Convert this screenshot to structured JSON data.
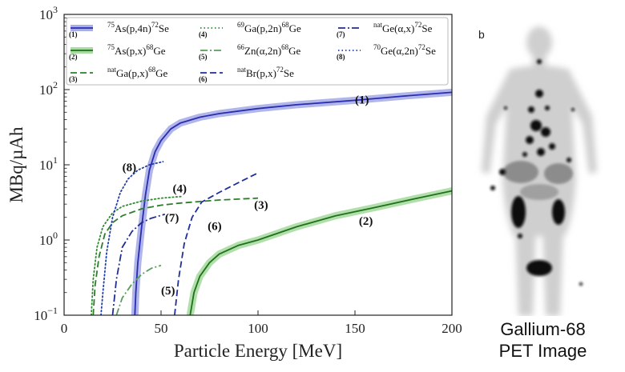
{
  "chart_data": {
    "type": "line",
    "xlabel": "Particle Energy [MeV]",
    "ylabel": "MBq/µAh",
    "xlim": [
      0,
      200
    ],
    "ylim": [
      0.1,
      1000
    ],
    "yscale": "log",
    "grid": false,
    "legend_position": "top",
    "x_ticks": [
      "0",
      "50",
      "100",
      "150",
      "200"
    ],
    "y_ticks": [
      {
        "base": "10",
        "exp": "−1",
        "value": 0.1
      },
      {
        "base": "10",
        "exp": "0",
        "value": 1
      },
      {
        "base": "10",
        "exp": "1",
        "value": 10
      },
      {
        "base": "10",
        "exp": "2",
        "value": 100
      },
      {
        "base": "10",
        "exp": "3",
        "value": 1000
      }
    ],
    "series": [
      {
        "id": "1",
        "number": "(1)",
        "sup1": "75",
        "base1": "As(p,4n)",
        "sup2": "72",
        "base2": "Se",
        "label": "(1)",
        "label_at": [
          150,
          65
        ],
        "color": "#2b2bb0",
        "style": "solid",
        "band": true,
        "band_color": "#a8aee8",
        "points": [
          [
            36.5,
            0.1
          ],
          [
            37,
            0.2
          ],
          [
            38,
            0.5
          ],
          [
            40,
            1.5
          ],
          [
            42,
            4
          ],
          [
            44,
            8.5
          ],
          [
            47,
            15
          ],
          [
            50,
            21
          ],
          [
            55,
            30
          ],
          [
            60,
            36
          ],
          [
            70,
            43
          ],
          [
            80,
            48
          ],
          [
            100,
            56
          ],
          [
            120,
            63
          ],
          [
            150,
            72
          ],
          [
            175,
            82
          ],
          [
            200,
            92
          ]
        ]
      },
      {
        "id": "2",
        "number": "(2)",
        "sup1": "75",
        "base1": "As(p,x)",
        "sup2": "68",
        "base2": "Ge",
        "label": "(2)",
        "label_at": [
          152,
          1.6
        ],
        "color": "#1f6f1f",
        "style": "solid",
        "band": true,
        "band_color": "#a8dca0",
        "points": [
          [
            65,
            0.1
          ],
          [
            67,
            0.2
          ],
          [
            70,
            0.33
          ],
          [
            75,
            0.5
          ],
          [
            80,
            0.65
          ],
          [
            90,
            0.85
          ],
          [
            100,
            1.0
          ],
          [
            120,
            1.5
          ],
          [
            140,
            2.1
          ],
          [
            160,
            2.7
          ],
          [
            180,
            3.5
          ],
          [
            200,
            4.5
          ]
        ]
      },
      {
        "id": "3",
        "number": "(3)",
        "sup1": "nat",
        "base1": "Ga(p,x)",
        "sup2": "68",
        "base2": "Ge",
        "label": "(3)",
        "label_at": [
          98,
          2.6
        ],
        "color": "#2e7d2e",
        "style": "dashed",
        "points": [
          [
            15,
            0.1
          ],
          [
            16,
            0.25
          ],
          [
            18,
            0.6
          ],
          [
            21,
            1.2
          ],
          [
            25,
            1.7
          ],
          [
            30,
            2.1
          ],
          [
            40,
            2.6
          ],
          [
            50,
            2.9
          ],
          [
            60,
            3.1
          ],
          [
            80,
            3.4
          ],
          [
            100,
            3.6
          ]
        ]
      },
      {
        "id": "4",
        "number": "(4)",
        "sup1": "69",
        "base1": "Ga(p,2n)",
        "sup2": "68",
        "base2": "Ge",
        "label": "(4)",
        "label_at": [
          56,
          4.3
        ],
        "color": "#2e8b2e",
        "style": "dotted",
        "points": [
          [
            14,
            0.1
          ],
          [
            15,
            0.3
          ],
          [
            17,
            0.8
          ],
          [
            20,
            1.5
          ],
          [
            25,
            2.3
          ],
          [
            30,
            2.8
          ],
          [
            40,
            3.3
          ],
          [
            50,
            3.6
          ],
          [
            61,
            3.8
          ]
        ]
      },
      {
        "id": "5",
        "number": "(5)",
        "sup1": "66",
        "base1": "Zn(α,2n)",
        "sup2": "68",
        "base2": "Ge",
        "label": "(5)",
        "label_at": [
          50,
          0.19
        ],
        "color": "#5a9e5a",
        "style": "dashdot",
        "points": [
          [
            27,
            0.1
          ],
          [
            30,
            0.17
          ],
          [
            35,
            0.26
          ],
          [
            40,
            0.35
          ],
          [
            45,
            0.42
          ],
          [
            50,
            0.46
          ]
        ]
      },
      {
        "id": "6",
        "number": "(6)",
        "sup1": "nat",
        "base1": "Br(p,x)",
        "sup2": "72",
        "base2": "Se",
        "label": "(6)",
        "label_at": [
          74,
          1.35
        ],
        "color": "#1f2f9e",
        "style": "dashed",
        "points": [
          [
            57,
            0.1
          ],
          [
            59,
            0.3
          ],
          [
            62,
            0.9
          ],
          [
            66,
            2.0
          ],
          [
            71,
            3.2
          ],
          [
            80,
            4.3
          ],
          [
            90,
            5.8
          ],
          [
            100,
            7.8
          ]
        ]
      },
      {
        "id": "7",
        "number": "(7)",
        "sup1": "nat",
        "base1": "Ge(α,x)",
        "sup2": "72",
        "base2": "Se",
        "label": "(7)",
        "label_at": [
          52,
          1.75
        ],
        "color": "#1f2f8e",
        "style": "dashdot",
        "points": [
          [
            25,
            0.1
          ],
          [
            27,
            0.3
          ],
          [
            30,
            0.8
          ],
          [
            35,
            1.3
          ],
          [
            40,
            1.7
          ],
          [
            45,
            1.95
          ],
          [
            52,
            2.2
          ]
        ]
      },
      {
        "id": "8",
        "number": "(8)",
        "sup1": "70",
        "base1": "Ge(α,2n)",
        "sup2": "72",
        "base2": "Se",
        "label": "(8)",
        "label_at": [
          30,
          8.2
        ],
        "color": "#1f3fae",
        "style": "dotted",
        "points": [
          [
            19,
            0.1
          ],
          [
            20,
            0.2
          ],
          [
            22,
            0.7
          ],
          [
            25,
            2.0
          ],
          [
            29,
            4.3
          ],
          [
            33,
            6.5
          ],
          [
            38,
            8.5
          ],
          [
            44,
            10
          ],
          [
            51,
            11
          ]
        ]
      }
    ]
  },
  "pet": {
    "letter": "b",
    "caption_line1": "Gallium-68",
    "caption_line2": "PET Image"
  }
}
